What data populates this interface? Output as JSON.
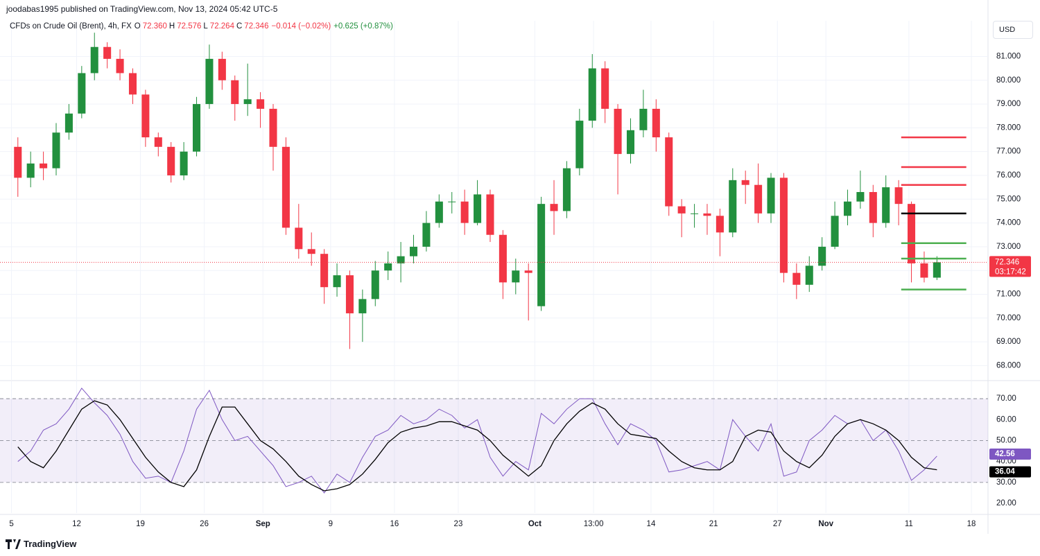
{
  "header": {
    "publisher": "joodabas1995 published on TradingView.com, Nov 13, 2024 05:42 UTC-5",
    "symbol": "CFDs on Crude Oil (Brent), 4h, FX",
    "ohlc": [
      {
        "key": "O",
        "value": "72.360"
      },
      {
        "key": "H",
        "value": "72.576"
      },
      {
        "key": "L",
        "value": "72.264"
      },
      {
        "key": "C",
        "value": "72.346"
      }
    ],
    "change": "−0.014 (−0.02%)",
    "change_2": "+0.625 (+0.87%)",
    "currency": "USD"
  },
  "footer": {
    "brand": "TradingView"
  },
  "chart_data": [
    {
      "type": "candlestick",
      "up_color": "#22903e",
      "down_color": "#f23645",
      "grid": true,
      "xlim": [
        -1.4,
        76
      ],
      "ylim": [
        67.4,
        82.5
      ],
      "yticks": [
        {
          "value": 68,
          "label": "68.000"
        },
        {
          "value": 69,
          "label": "69.000"
        },
        {
          "value": 70,
          "label": "70.000"
        },
        {
          "value": 71,
          "label": "71.000"
        },
        {
          "value": 72,
          "label": "72.000"
        },
        {
          "value": 73,
          "label": "73.000"
        },
        {
          "value": 74,
          "label": "74.000"
        },
        {
          "value": 75,
          "label": "75.000"
        },
        {
          "value": 76,
          "label": "76.000"
        },
        {
          "value": 77,
          "label": "77.000"
        },
        {
          "value": 78,
          "label": "78.000"
        },
        {
          "value": 79,
          "label": "79.000"
        },
        {
          "value": 80,
          "label": "80.000"
        },
        {
          "value": 81,
          "label": "81.000"
        }
      ],
      "x": [
        0,
        1,
        2,
        3,
        4,
        5,
        6,
        7,
        8,
        9,
        10,
        11,
        12,
        13,
        14,
        15,
        16,
        17,
        18,
        19,
        20,
        21,
        22,
        23,
        24,
        25,
        26,
        27,
        28,
        29,
        30,
        31,
        32,
        33,
        34,
        35,
        36,
        37,
        38,
        39,
        40,
        41,
        42,
        43,
        44,
        45,
        46,
        47,
        48,
        49,
        50,
        51,
        52,
        53,
        54,
        55,
        56,
        57,
        58,
        59,
        60,
        61,
        62,
        63,
        64,
        65,
        66,
        67,
        68,
        69,
        70,
        71,
        72
      ],
      "open": [
        77.2,
        75.9,
        76.5,
        76.3,
        77.8,
        78.6,
        80.3,
        81.4,
        80.9,
        80.3,
        79.4,
        77.6,
        77.2,
        76.0,
        77.0,
        79.0,
        80.9,
        80.0,
        79.0,
        79.2,
        78.8,
        77.2,
        73.8,
        72.9,
        72.7,
        71.3,
        71.8,
        70.2,
        70.8,
        72.0,
        72.3,
        72.6,
        73.0,
        74.0,
        74.9,
        74.9,
        74.0,
        75.2,
        73.5,
        71.5,
        72.0,
        70.5,
        74.8,
        74.5,
        76.3,
        78.3,
        80.5,
        78.8,
        76.9,
        77.9,
        78.8,
        77.6,
        74.7,
        74.4,
        74.4,
        74.3,
        73.6,
        75.8,
        75.6,
        74.4,
        75.9,
        71.9,
        71.4,
        72.2,
        73.0,
        74.3,
        74.9,
        75.3,
        74.0,
        75.5,
        74.8,
        72.3,
        71.7
      ],
      "high": [
        77.6,
        77.0,
        77.0,
        78.2,
        79.0,
        80.6,
        82.0,
        81.6,
        81.3,
        80.5,
        79.6,
        77.8,
        77.4,
        77.4,
        79.3,
        81.5,
        81.2,
        80.2,
        80.7,
        79.5,
        79.0,
        77.6,
        74.8,
        73.6,
        72.9,
        72.3,
        72.0,
        71.2,
        72.4,
        72.8,
        73.2,
        73.5,
        74.5,
        75.2,
        75.3,
        75.4,
        75.8,
        75.4,
        73.7,
        72.5,
        72.3,
        75.1,
        75.8,
        76.6,
        78.8,
        81.1,
        80.8,
        79.0,
        78.4,
        79.6,
        79.2,
        77.8,
        75.0,
        74.8,
        74.8,
        74.6,
        76.3,
        76.2,
        76.5,
        76.1,
        76.1,
        72.3,
        72.6,
        73.4,
        74.9,
        75.4,
        76.2,
        75.6,
        76.0,
        75.8,
        74.9,
        72.8,
        72.6
      ],
      "low": [
        75.1,
        75.5,
        75.8,
        76.0,
        77.5,
        78.4,
        80.0,
        80.5,
        80.0,
        79.0,
        77.2,
        76.8,
        75.7,
        75.8,
        76.8,
        78.8,
        79.6,
        78.3,
        78.5,
        78.0,
        76.2,
        73.5,
        72.5,
        72.2,
        70.6,
        70.9,
        68.7,
        69.0,
        70.5,
        71.6,
        71.5,
        72.3,
        72.8,
        73.8,
        74.4,
        73.5,
        73.9,
        73.2,
        70.8,
        71.0,
        69.9,
        70.3,
        73.5,
        74.2,
        76.0,
        78.0,
        78.2,
        75.2,
        76.5,
        77.6,
        77.0,
        74.3,
        73.4,
        73.8,
        73.5,
        72.6,
        73.4,
        74.8,
        74.0,
        74.0,
        71.5,
        70.8,
        71.1,
        72.0,
        72.9,
        73.9,
        74.6,
        73.4,
        73.8,
        73.9,
        71.5,
        71.5,
        71.6
      ],
      "close": [
        75.9,
        76.5,
        76.3,
        77.8,
        78.6,
        80.3,
        81.4,
        80.9,
        80.3,
        79.4,
        77.6,
        77.2,
        76.0,
        77.0,
        79.0,
        80.9,
        80.0,
        79.0,
        79.2,
        78.8,
        77.2,
        73.8,
        72.9,
        72.7,
        71.3,
        71.8,
        70.2,
        70.8,
        72.0,
        72.3,
        72.6,
        73.0,
        74.0,
        74.9,
        74.9,
        74.0,
        75.2,
        73.5,
        71.5,
        72.0,
        71.9,
        74.8,
        74.5,
        76.3,
        78.3,
        80.5,
        78.8,
        76.9,
        77.9,
        78.8,
        77.6,
        74.7,
        74.4,
        74.4,
        74.3,
        73.6,
        75.8,
        75.6,
        74.4,
        75.9,
        71.9,
        71.4,
        72.2,
        73.0,
        74.3,
        74.9,
        75.3,
        74.0,
        75.5,
        74.8,
        72.3,
        71.7,
        72.346
      ],
      "last_price": {
        "value": 72.346,
        "countdown": "03:17:42",
        "color": "#f23645"
      },
      "levels": {
        "x_start": 69.2,
        "x_end": 74.3,
        "lines": [
          {
            "value": 77.6,
            "color": "#f23645"
          },
          {
            "value": 76.35,
            "color": "#f23645"
          },
          {
            "value": 75.6,
            "color": "#f23645"
          },
          {
            "value": 74.4,
            "color": "#000000"
          },
          {
            "value": 73.15,
            "color": "#4caf50"
          },
          {
            "value": 72.5,
            "color": "#4caf50"
          },
          {
            "value": 71.2,
            "color": "#4caf50"
          }
        ]
      }
    },
    {
      "type": "line",
      "grid": true,
      "ylim": [
        15.4,
        78.3
      ],
      "yticks": [
        {
          "value": 20,
          "label": "20.00"
        },
        {
          "value": 30,
          "label": "30.00"
        },
        {
          "value": 40,
          "label": "40.00"
        },
        {
          "value": 50,
          "label": "50.00"
        },
        {
          "value": 60,
          "label": "60.00"
        },
        {
          "value": 70,
          "label": "70.00"
        }
      ],
      "band": [
        30,
        70
      ],
      "band_color": "#7e57c2",
      "dashed_levels": [
        30,
        50,
        70
      ],
      "xticks": [
        {
          "value": -0.5,
          "label": "5"
        },
        {
          "value": 4.6,
          "label": "12"
        },
        {
          "value": 9.6,
          "label": "19"
        },
        {
          "value": 14.6,
          "label": "26"
        },
        {
          "value": 19.2,
          "label": "Sep"
        },
        {
          "value": 24.5,
          "label": "9"
        },
        {
          "value": 29.5,
          "label": "16"
        },
        {
          "value": 34.5,
          "label": "23"
        },
        {
          "value": 40.5,
          "label": "Oct"
        },
        {
          "value": 45.1,
          "label": "13:00"
        },
        {
          "value": 49.6,
          "label": "14"
        },
        {
          "value": 54.5,
          "label": "21"
        },
        {
          "value": 59.5,
          "label": "27"
        },
        {
          "value": 63.3,
          "label": "Nov"
        },
        {
          "value": 69.8,
          "label": "11"
        },
        {
          "value": 74.7,
          "label": "18"
        }
      ],
      "series": [
        {
          "color": "#7e57c2",
          "values": [
            40,
            45,
            55,
            58,
            65,
            75,
            68,
            62,
            53,
            40,
            32,
            33,
            30,
            45,
            65,
            74,
            60,
            50,
            52,
            45,
            38,
            28,
            30,
            33,
            25,
            34,
            30,
            42,
            52,
            55,
            62,
            58,
            60,
            65,
            62,
            56,
            60,
            42,
            33,
            40,
            36,
            63,
            58,
            65,
            70,
            70,
            58,
            48,
            58,
            55,
            50,
            35,
            36,
            38,
            40,
            36,
            60,
            52,
            45,
            58,
            33,
            35,
            50,
            55,
            62,
            58,
            60,
            50,
            55,
            45,
            31,
            36,
            42.56
          ]
        },
        {
          "color": "#000000",
          "values": [
            47,
            40,
            37,
            45,
            55,
            65,
            69,
            67,
            60,
            51,
            42,
            35,
            30,
            28,
            36,
            52,
            66,
            66,
            58,
            50,
            46,
            40,
            33,
            29,
            26,
            27,
            29,
            34,
            41,
            49,
            54,
            56,
            57,
            59,
            59,
            57,
            55,
            50,
            43,
            38,
            33,
            38,
            50,
            58,
            64,
            68,
            65,
            58,
            53,
            52,
            51,
            45,
            40,
            37,
            36,
            36,
            40,
            52,
            55,
            54,
            45,
            40,
            37,
            43,
            52,
            58,
            60,
            58,
            55,
            50,
            42,
            37,
            36.04
          ]
        }
      ]
    }
  ]
}
